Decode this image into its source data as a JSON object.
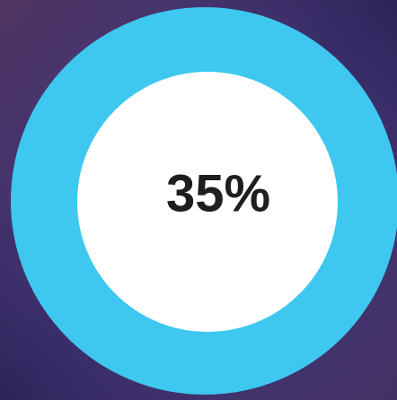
{
  "progress": {
    "label": "35%"
  }
}
